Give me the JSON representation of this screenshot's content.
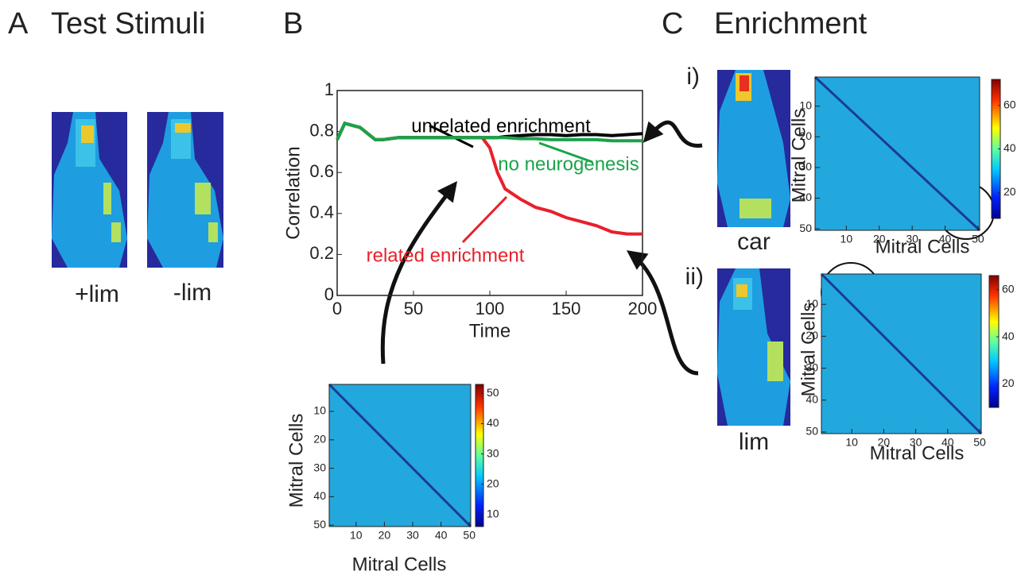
{
  "panels": {
    "a_letter": "A",
    "a_title": "Test Stimuli",
    "b_letter": "B",
    "c_letter": "C",
    "c_title": "Enrichment",
    "stimulus_labels": [
      "+lim",
      "-lim"
    ],
    "row_labels": [
      "i)",
      "ii)"
    ],
    "odor_labels": [
      "car",
      "lim"
    ]
  },
  "chart_data": [
    {
      "type": "line",
      "xlabel": "Time",
      "ylabel": "Correlation",
      "x": [
        0,
        5,
        10,
        15,
        20,
        25,
        30,
        40,
        50,
        60,
        70,
        80,
        90,
        95,
        100,
        105,
        110,
        120,
        130,
        140,
        150,
        160,
        170,
        180,
        190,
        200
      ],
      "series": [
        {
          "name": "unrelated enrichment",
          "color": "#000000",
          "values": [
            0.76,
            0.84,
            0.83,
            0.82,
            0.79,
            0.76,
            0.76,
            0.77,
            0.77,
            0.77,
            0.77,
            0.77,
            0.77,
            0.77,
            0.77,
            0.77,
            0.775,
            0.78,
            0.785,
            0.785,
            0.78,
            0.785,
            0.785,
            0.78,
            0.785,
            0.79
          ]
        },
        {
          "name": "related enrichment",
          "color": "#e8202a",
          "values": [
            0.76,
            0.84,
            0.83,
            0.82,
            0.79,
            0.76,
            0.76,
            0.77,
            0.77,
            0.77,
            0.77,
            0.77,
            0.77,
            0.77,
            0.72,
            0.6,
            0.52,
            0.47,
            0.43,
            0.41,
            0.38,
            0.36,
            0.34,
            0.31,
            0.3,
            0.3
          ]
        },
        {
          "name": "no neurogenesis",
          "color": "#1aa34a",
          "values": [
            0.76,
            0.84,
            0.83,
            0.82,
            0.79,
            0.76,
            0.76,
            0.77,
            0.77,
            0.77,
            0.77,
            0.77,
            0.77,
            0.77,
            0.77,
            0.77,
            0.77,
            0.765,
            0.765,
            0.76,
            0.76,
            0.76,
            0.76,
            0.755,
            0.755,
            0.755
          ]
        }
      ],
      "xlim": [
        0,
        200
      ],
      "ylim": [
        0,
        1
      ],
      "xticks": [
        0,
        50,
        100,
        150,
        200
      ],
      "yticks": [
        0,
        0.2,
        0.4,
        0.6,
        0.8,
        1
      ]
    },
    {
      "type": "heatmap",
      "xlabel": "Mitral Cells",
      "ylabel": "Mitral Cells",
      "xlim": [
        0.5,
        50.5
      ],
      "ylim": [
        50.5,
        0.5
      ],
      "xticks": [
        10,
        20,
        30,
        40,
        50
      ],
      "yticks": [
        10,
        20,
        30,
        40,
        50
      ],
      "clim": [
        6,
        53
      ],
      "cticks": [
        10,
        20,
        30,
        40,
        50
      ]
    },
    {
      "type": "heatmap",
      "xlabel": "Mitral Cells",
      "ylabel": "Mitral Cells",
      "xlim": [
        0.5,
        50.5
      ],
      "ylim": [
        50.5,
        0.5
      ],
      "xticks": [
        10,
        20,
        30,
        40,
        50
      ],
      "yticks": [
        10,
        20,
        30,
        40,
        50
      ],
      "clim": [
        8,
        72
      ],
      "cticks": [
        20,
        40,
        60
      ]
    },
    {
      "type": "heatmap",
      "xlabel": "Mitral Cells",
      "ylabel": "Mitral Cells",
      "xlim": [
        0.5,
        50.5
      ],
      "ylim": [
        50.5,
        0.5
      ],
      "xticks": [
        10,
        20,
        30,
        40,
        50
      ],
      "yticks": [
        10,
        20,
        30,
        40,
        50
      ],
      "clim": [
        10,
        66
      ],
      "cticks": [
        20,
        40,
        60
      ]
    }
  ]
}
